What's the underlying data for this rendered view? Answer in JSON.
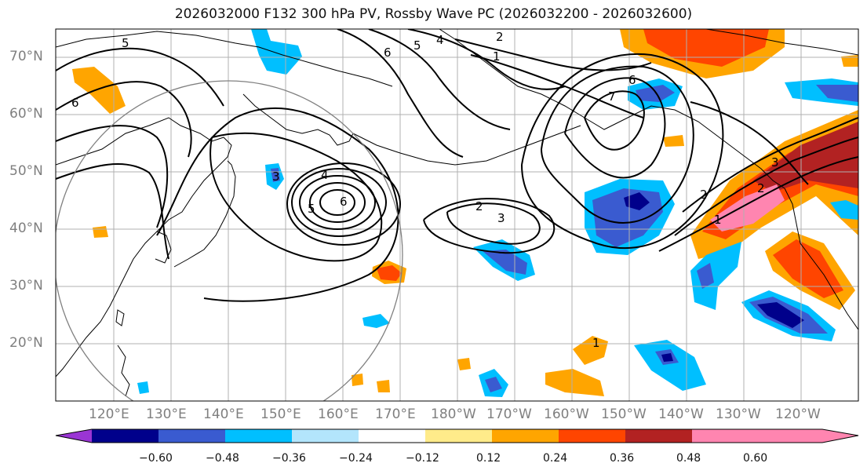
{
  "title": "2026032000 F132 300 hPa PV, Rossby Wave PC (2026032200 - 2026032600)",
  "lat_labels": [
    "70°N",
    "60°N",
    "50°N",
    "40°N",
    "30°N",
    "20°N"
  ],
  "lon_labels": [
    "120°E",
    "130°E",
    "140°E",
    "150°E",
    "160°E",
    "170°E",
    "180°W",
    "170°W",
    "160°W",
    "150°W",
    "140°W",
    "130°W",
    "120°W"
  ],
  "colorbar": {
    "colors": [
      "#9a35d4",
      "#00008b",
      "#3a5bd0",
      "#00bfff",
      "#b3e5fc",
      "#ffffff",
      "#ffeb8a",
      "#ffa500",
      "#ff4500",
      "#b22222",
      "#ff85b0"
    ],
    "tick_labels": [
      "−0.60",
      "−0.48",
      "−0.36",
      "−0.24",
      "−0.12",
      "0.12",
      "0.24",
      "0.36",
      "0.48",
      "0.60"
    ]
  },
  "contour_labels": [
    "6",
    "5",
    "4",
    "2",
    "1",
    "6",
    "7",
    "4",
    "3",
    "6",
    "5",
    "2",
    "3",
    "2",
    "1",
    "3",
    "2",
    "1",
    "5",
    "6"
  ]
}
